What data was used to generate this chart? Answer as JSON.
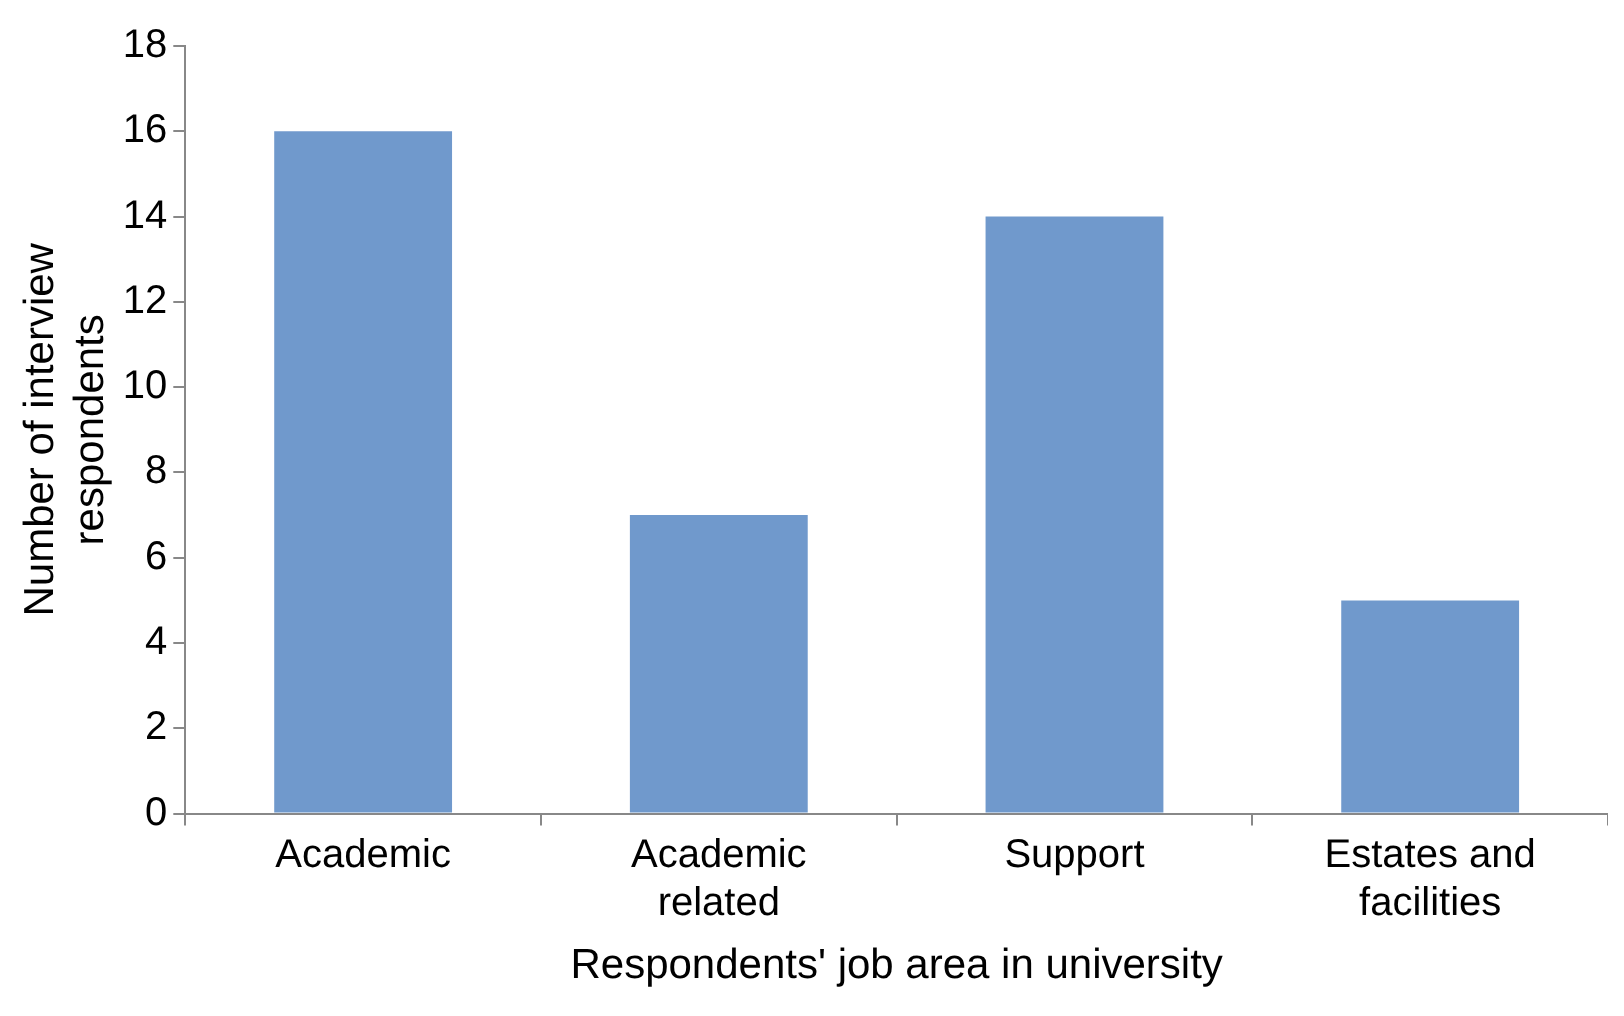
{
  "chart_data": {
    "type": "bar",
    "xlabel": "Respondents' job area in university",
    "ylabel": "Number of interview respondents",
    "categories": [
      "Academic",
      "Academic related",
      "Support",
      "Estates and facilities"
    ],
    "values": [
      16,
      7,
      14,
      5
    ],
    "color": "#7099cc",
    "ylim": [
      0,
      18
    ],
    "yticks": [
      0,
      2,
      4,
      6,
      8,
      10,
      12,
      14,
      16,
      18
    ],
    "grid": false,
    "legend": false
  }
}
